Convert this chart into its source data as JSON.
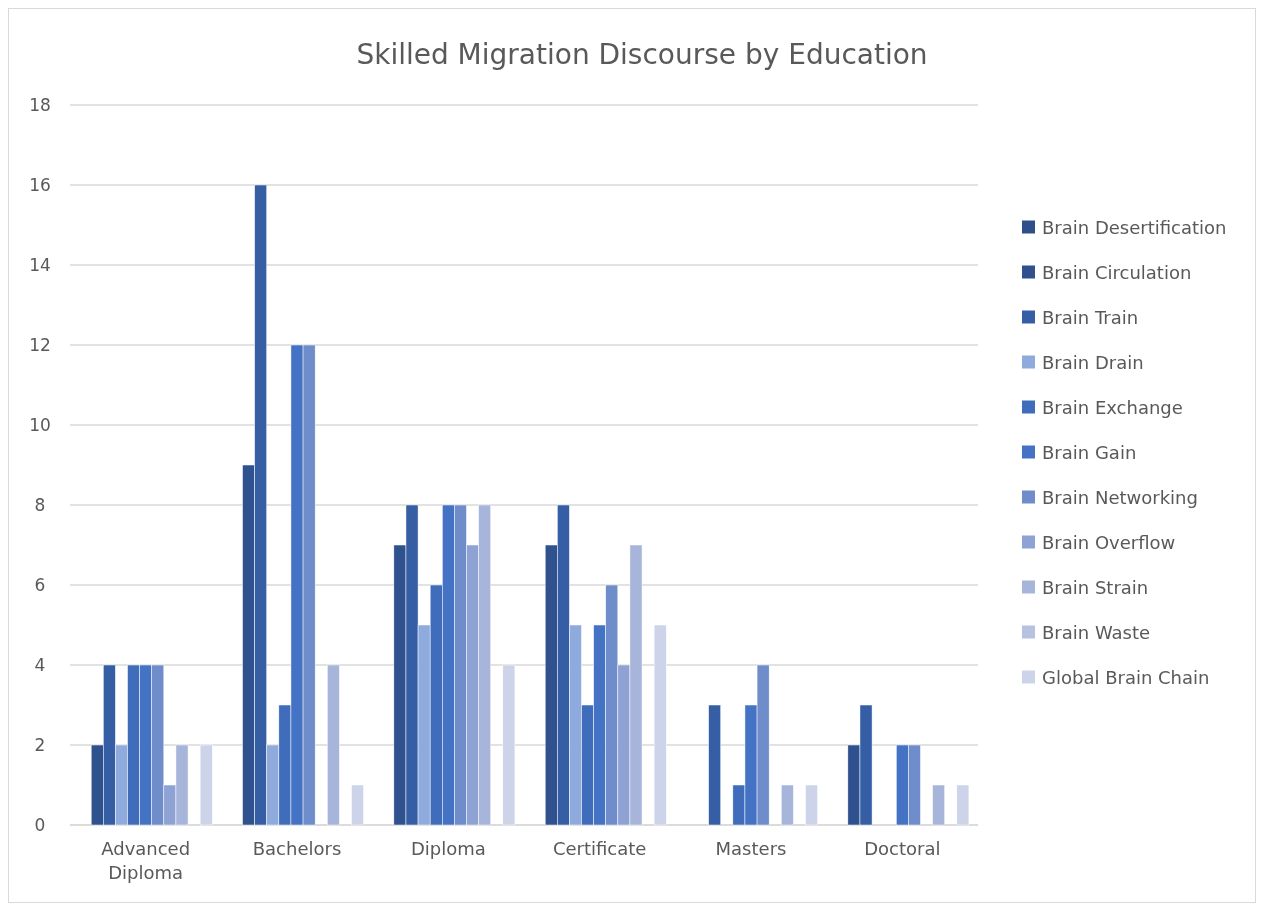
{
  "chart_data": {
    "type": "bar",
    "title": "Skilled Migration Discourse by Education",
    "categories": [
      "Advanced Diploma",
      "Bachelors",
      "Diploma",
      "Certificate",
      "Masters",
      "Doctoral"
    ],
    "series": [
      {
        "name": "Brain Desertification",
        "color": "#2f4f8a",
        "values": [
          0,
          0,
          0,
          0,
          0,
          0
        ]
      },
      {
        "name": "Brain Circulation",
        "color": "#2f528f",
        "values": [
          2,
          9,
          7,
          7,
          0,
          2
        ]
      },
      {
        "name": "Brain Train",
        "color": "#355ea4",
        "values": [
          4,
          16,
          8,
          8,
          3,
          3
        ]
      },
      {
        "name": "Brain Drain",
        "color": "#8faadc",
        "values": [
          2,
          2,
          5,
          5,
          0,
          0
        ]
      },
      {
        "name": "Brain Exchange",
        "color": "#3f6cbb",
        "values": [
          4,
          3,
          6,
          3,
          1,
          0
        ]
      },
      {
        "name": "Brain Gain",
        "color": "#4472c4",
        "values": [
          4,
          12,
          8,
          5,
          3,
          2
        ]
      },
      {
        "name": "Brain Networking",
        "color": "#6f8dcb",
        "values": [
          4,
          12,
          8,
          6,
          4,
          2
        ]
      },
      {
        "name": "Brain Overflow",
        "color": "#8ea2d3",
        "values": [
          1,
          0,
          7,
          4,
          0,
          0
        ]
      },
      {
        "name": "Brain Strain",
        "color": "#a7b5db",
        "values": [
          2,
          4,
          8,
          7,
          1,
          1
        ]
      },
      {
        "name": "Brain Waste",
        "color": "#b7c2e2",
        "values": [
          0,
          0,
          0,
          0,
          0,
          0
        ]
      },
      {
        "name": "Global Brain Chain",
        "color": "#cdd4ea",
        "values": [
          2,
          1,
          4,
          5,
          1,
          1
        ]
      }
    ],
    "ylim": [
      0,
      18
    ],
    "yticks": [
      0,
      2,
      4,
      6,
      8,
      10,
      12,
      14,
      16,
      18
    ],
    "grid": "y",
    "legend": "right"
  }
}
